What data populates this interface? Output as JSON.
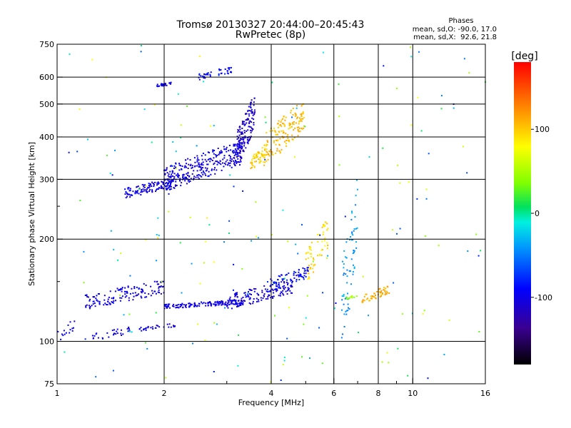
{
  "chart_data": {
    "type": "scatter",
    "title": "Tromsø 20130327 20:44:00–20:45:43",
    "subtitle": "RwPretec (8p)",
    "stats": {
      "heading": "Phases",
      "line1": "mean, sd,O: -90.0, 17.0",
      "line2": "mean, sd,X:  92.6, 21.8"
    },
    "xlabel": "Frequency [MHz]",
    "ylabel": "Stationary phase Virtual Height [km]",
    "x_scale": "log",
    "y_scale": "log",
    "xlim": [
      1,
      16
    ],
    "ylim": [
      75,
      750
    ],
    "x_ticks": [
      1,
      2,
      4,
      6,
      8,
      10,
      16
    ],
    "x_tick_labels": [
      "1",
      "2",
      "4",
      "6",
      "8",
      "10",
      "16"
    ],
    "x_minor_ticks": [
      3,
      5,
      7,
      9
    ],
    "y_ticks": [
      75,
      100,
      200,
      300,
      400,
      500,
      600,
      750
    ],
    "y_tick_labels": [
      "75",
      "100",
      "200",
      "300",
      "400",
      "500",
      "600",
      "750"
    ],
    "y_minor_ticks": [
      150,
      250
    ],
    "grid": true,
    "colorbar": {
      "label": "[deg]",
      "range": [
        -180,
        180
      ],
      "ticks": [
        100,
        0,
        -100
      ],
      "tick_labels": [
        "100",
        "0",
        "-100"
      ],
      "colormap": "rainbow"
    },
    "series": [
      {
        "x_range": [
          1.55,
          2.1
        ],
        "y_range": [
          265,
          300
        ],
        "phase": -100,
        "count": 120
      },
      {
        "x_range": [
          2.0,
          3.3
        ],
        "y_range": [
          280,
          380
        ],
        "phase": -100,
        "count": 320
      },
      {
        "x_range": [
          3.2,
          3.6
        ],
        "y_range": [
          330,
          520
        ],
        "phase": -110,
        "count": 160
      },
      {
        "x_range": [
          3.5,
          3.9
        ],
        "y_range": [
          320,
          380
        ],
        "phase": 100,
        "count": 60
      },
      {
        "x_range": [
          3.8,
          4.95
        ],
        "y_range": [
          330,
          500
        ],
        "phase": 105,
        "count": 150
      },
      {
        "x_range": [
          1.9,
          2.1
        ],
        "y_range": [
          560,
          580
        ],
        "phase": -100,
        "count": 25
      },
      {
        "x_range": [
          2.5,
          3.1
        ],
        "y_range": [
          590,
          640
        ],
        "phase": -90,
        "count": 40
      },
      {
        "x_range": [
          1.2,
          2.0
        ],
        "y_range": [
          125,
          150
        ],
        "phase": -100,
        "count": 140
      },
      {
        "x_range": [
          2.0,
          3.3
        ],
        "y_range": [
          125,
          132
        ],
        "phase": -100,
        "count": 150
      },
      {
        "x_range": [
          3.0,
          4.6
        ],
        "y_range": [
          125,
          150
        ],
        "phase": -105,
        "count": 140
      },
      {
        "x_range": [
          3.9,
          5.1
        ],
        "y_range": [
          140,
          165
        ],
        "phase": -90,
        "count": 80
      },
      {
        "x_range": [
          5.0,
          5.8
        ],
        "y_range": [
          150,
          225
        ],
        "phase": 95,
        "count": 60
      },
      {
        "x_range": [
          1.25,
          1.6
        ],
        "y_range": [
          100,
          110
        ],
        "phase": -100,
        "count": 30
      },
      {
        "x_range": [
          1.7,
          2.15
        ],
        "y_range": [
          107,
          113
        ],
        "phase": -100,
        "count": 30
      },
      {
        "x_range": [
          1.0,
          1.12
        ],
        "y_range": [
          100,
          115
        ],
        "phase": -100,
        "count": 15
      },
      {
        "x_range": [
          6.3,
          7.0
        ],
        "y_range": [
          100,
          280
        ],
        "phase": -40,
        "count": 70
      },
      {
        "x_range": [
          7.2,
          8.6
        ],
        "y_range": [
          130,
          145
        ],
        "phase": 110,
        "count": 55
      },
      {
        "x_range": [
          6.5,
          7.0
        ],
        "y_range": [
          133,
          137
        ],
        "phase": 45,
        "count": 12
      },
      {
        "x_range": [
          1.0,
          16.0
        ],
        "y_range": [
          75,
          750
        ],
        "phase": 0,
        "count": 190
      }
    ]
  }
}
